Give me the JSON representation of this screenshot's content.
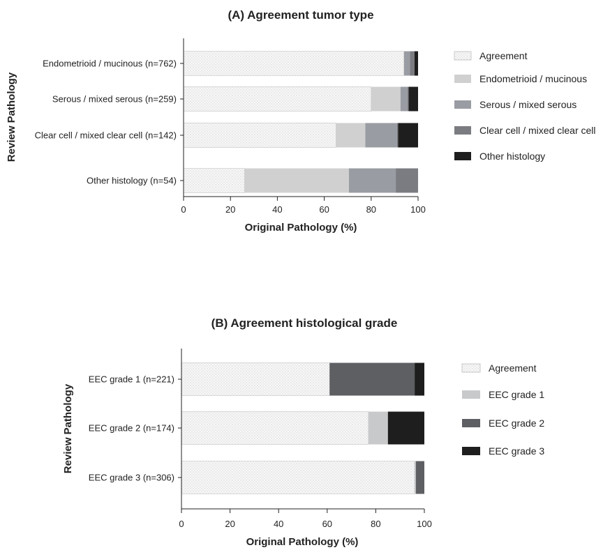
{
  "chart_data": [
    {
      "id": "A",
      "type": "bar",
      "orientation": "horizontal",
      "stacked": true,
      "title": "(A) Agreement tumor type",
      "xlabel": "Original Pathology (%)",
      "ylabel": "Review Pathology",
      "xlim": [
        0,
        100
      ],
      "xticks": [
        "0",
        "20",
        "40",
        "60",
        "80",
        "100"
      ],
      "categories": [
        "Endometrioid / mucinous (n=762)",
        "Serous / mixed serous (n=259)",
        "Clear cell / mixed clear cell (n=142)",
        "Other histology (n=54)"
      ],
      "series": [
        {
          "name": "Agreement",
          "color": "#f4f4f4",
          "pattern": "dots",
          "values": [
            94.0,
            80.0,
            65.0,
            26.0
          ]
        },
        {
          "name": "Endometrioid / mucinous",
          "color": "#d0d0d0",
          "values": [
            0,
            12.5,
            12.5,
            44.5
          ]
        },
        {
          "name": "Serous / mixed serous",
          "color": "#9a9ca3",
          "values": [
            2.5,
            3.0,
            13.5,
            20.0
          ]
        },
        {
          "name": "Clear cell / mixed clear cell",
          "color": "#7b7c81",
          "values": [
            2.0,
            0.5,
            0.5,
            9.5
          ]
        },
        {
          "name": "Other histology",
          "color": "#1e1e1e",
          "values": [
            1.5,
            4.0,
            8.5,
            0
          ]
        }
      ],
      "grid": false,
      "legend_position": "right"
    },
    {
      "id": "B",
      "type": "bar",
      "orientation": "horizontal",
      "stacked": true,
      "title": "(B) Agreement histological grade",
      "xlabel": "Original Pathology (%)",
      "ylabel": "Review Pathology",
      "xlim": [
        0,
        100
      ],
      "xticks": [
        "0",
        "20",
        "40",
        "60",
        "80",
        "100"
      ],
      "categories": [
        "EEC grade 1 (n=221)",
        "EEC grade 2 (n=174)",
        "EEC grade 3 (n=306)"
      ],
      "series": [
        {
          "name": "Agreement",
          "color": "#f4f4f4",
          "pattern": "dots",
          "values": [
            61.0,
            77.0,
            96.0
          ]
        },
        {
          "name": "EEC grade 1",
          "color": "#c8c9cb",
          "values": [
            0,
            8.0,
            0.5
          ]
        },
        {
          "name": "EEC grade 2",
          "color": "#5e5f63",
          "values": [
            35.0,
            0,
            3.5
          ]
        },
        {
          "name": "EEC grade 3",
          "color": "#1e1e1e",
          "values": [
            4.0,
            15.0,
            0
          ]
        }
      ],
      "grid": false,
      "legend_position": "right"
    }
  ]
}
